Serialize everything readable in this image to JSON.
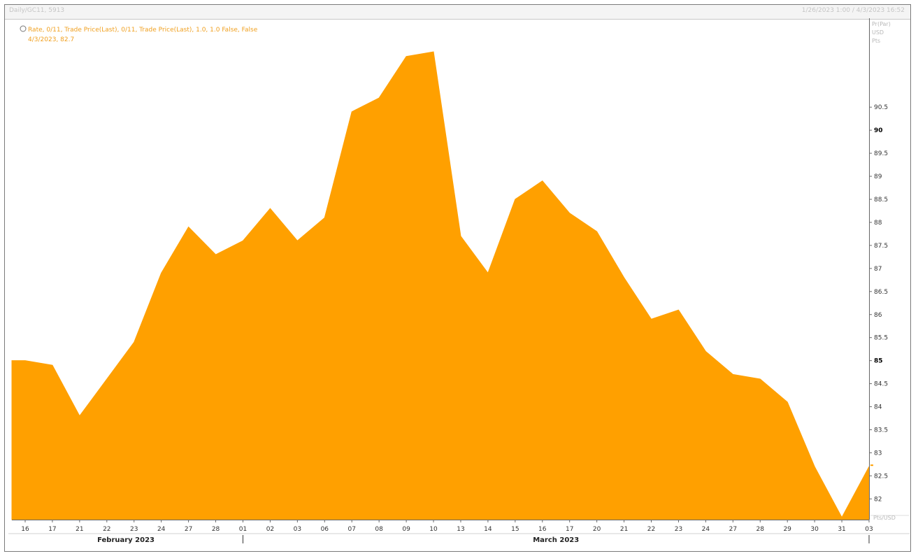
{
  "window": {
    "title": "Daily/GC11, 5913",
    "range_text": "1/26/2023 1:00 / 4/3/2023 16:52"
  },
  "legend": {
    "line1": "Rate, 0/11, Trade Price(Last), 0/11, Trade Price(Last), 1.0, 1.0 False, False",
    "line2": "4/3/2023, 82.7"
  },
  "price_axis_header": [
    "Pr(Par)",
    "USD",
    "Pts"
  ],
  "price_axis_footer": "Pts/USD",
  "colors": {
    "fill": "#ffa000",
    "axis": "#666666",
    "marker": "#ffa000"
  },
  "chart_data": {
    "type": "area",
    "x": [
      "16",
      "17",
      "21",
      "22",
      "23",
      "24",
      "27",
      "28",
      "01",
      "02",
      "03",
      "06",
      "07",
      "08",
      "09",
      "10",
      "13",
      "14",
      "15",
      "16",
      "17",
      "20",
      "21",
      "22",
      "23",
      "24",
      "27",
      "28",
      "29",
      "30",
      "31",
      "03"
    ],
    "values": [
      85.0,
      84.9,
      83.8,
      84.6,
      85.4,
      86.9,
      87.9,
      87.3,
      87.6,
      88.3,
      87.6,
      88.1,
      90.4,
      90.7,
      91.6,
      91.7,
      87.7,
      86.9,
      88.5,
      88.9,
      88.2,
      87.8,
      86.8,
      85.9,
      86.1,
      85.2,
      84.7,
      84.6,
      84.1,
      82.7,
      81.6,
      82.7
    ],
    "month_labels": [
      {
        "label": "February 2023",
        "at_index": 3.7,
        "separator_index": 8
      },
      {
        "label": "March 2023",
        "at_index": 19.5,
        "separator_index": 31
      }
    ],
    "ylim": [
      81.6,
      91.7
    ],
    "yticks": [
      82,
      82.5,
      83,
      83.5,
      84,
      84.5,
      85,
      85.5,
      86,
      86.5,
      87,
      87.5,
      88,
      88.5,
      89,
      89.5,
      90,
      90.5
    ],
    "bold_yticks": [
      85,
      90
    ],
    "last_value_label": "82.7",
    "title": "",
    "xlabel": "",
    "ylabel": ""
  }
}
